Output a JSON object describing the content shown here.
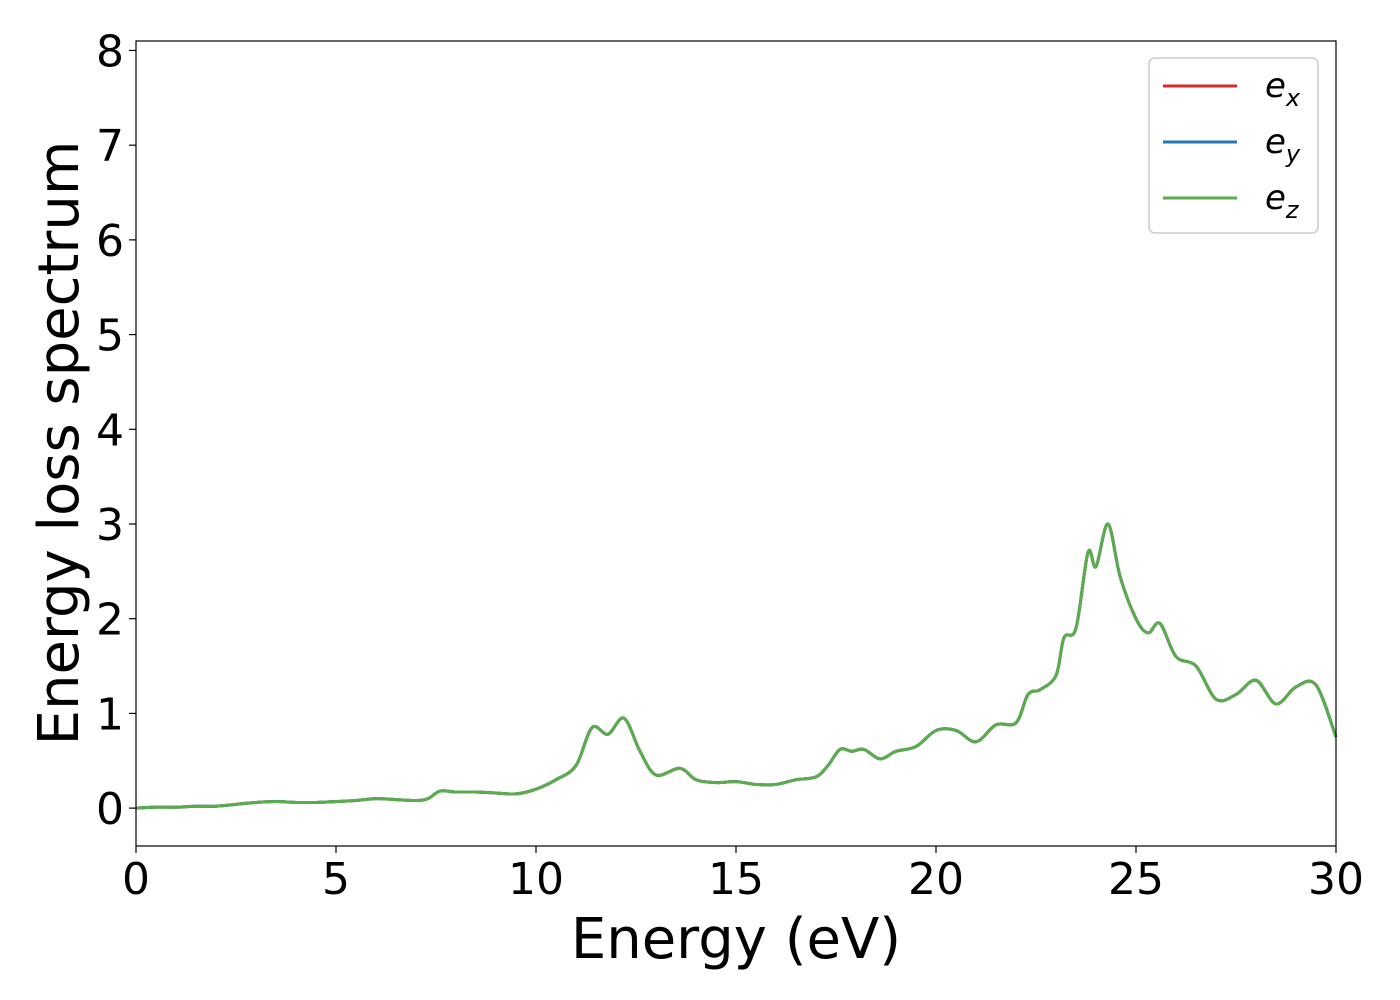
{
  "chart_data": {
    "type": "line",
    "title": "",
    "xlabel": "Energy (eV)",
    "ylabel": "Energy loss spectrum",
    "xlim": [
      0,
      30
    ],
    "ylim": [
      -0.4,
      8.1
    ],
    "xticks": [
      0,
      5,
      10,
      15,
      20,
      25,
      30
    ],
    "yticks": [
      0,
      1,
      2,
      3,
      4,
      5,
      6,
      7,
      8
    ],
    "grid": false,
    "legend_position": "top-right",
    "series": [
      {
        "name_base": "e",
        "name_sub": "x",
        "color": "#d62728",
        "x": [
          0,
          0.5,
          1,
          1.5,
          2,
          2.5,
          3,
          3.5,
          4,
          4.5,
          5,
          5.5,
          6,
          6.5,
          7,
          7.3,
          7.6,
          8,
          8.5,
          9,
          9.5,
          10,
          10.5,
          11,
          11.4,
          11.8,
          12.2,
          12.6,
          13,
          13.6,
          14,
          14.5,
          15,
          15.5,
          16,
          16.5,
          17,
          17.3,
          17.6,
          17.9,
          18.2,
          18.6,
          19,
          19.5,
          20,
          20.5,
          21,
          21.5,
          22,
          22.3,
          22.6,
          23,
          23.2,
          23.5,
          23.8,
          24,
          24.3,
          24.6,
          25,
          25.3,
          25.6,
          26,
          26.5,
          27,
          27.5,
          28,
          28.5,
          29,
          29.5,
          30
        ],
        "y": [
          0.0,
          0.01,
          0.01,
          0.02,
          0.02,
          0.04,
          0.06,
          0.07,
          0.06,
          0.06,
          0.07,
          0.08,
          0.1,
          0.09,
          0.08,
          0.1,
          0.18,
          0.17,
          0.17,
          0.16,
          0.15,
          0.2,
          0.3,
          0.45,
          0.85,
          0.78,
          0.95,
          0.6,
          0.35,
          0.42,
          0.3,
          0.27,
          0.28,
          0.25,
          0.25,
          0.3,
          0.33,
          0.45,
          0.62,
          0.6,
          0.62,
          0.52,
          0.6,
          0.65,
          0.82,
          0.82,
          0.7,
          0.88,
          0.9,
          1.2,
          1.25,
          1.4,
          1.8,
          1.9,
          2.7,
          2.55,
          3.0,
          2.45,
          2.0,
          1.85,
          1.95,
          1.6,
          1.5,
          1.15,
          1.2,
          1.35,
          1.1,
          1.28,
          1.3,
          0.75
        ]
      },
      {
        "name_base": "e",
        "name_sub": "y",
        "color": "#1f77b4",
        "x": [
          0,
          0.5,
          1,
          1.5,
          2,
          2.5,
          3,
          3.5,
          4,
          4.5,
          5,
          5.5,
          6,
          6.5,
          7,
          7.3,
          7.6,
          8,
          8.5,
          9,
          9.5,
          10,
          10.5,
          11,
          11.4,
          11.8,
          12.2,
          12.6,
          13,
          13.6,
          14,
          14.5,
          15,
          15.5,
          16,
          16.5,
          17,
          17.3,
          17.6,
          17.9,
          18.2,
          18.6,
          19,
          19.5,
          20,
          20.5,
          21,
          21.5,
          22,
          22.3,
          22.6,
          23,
          23.2,
          23.5,
          23.8,
          24,
          24.3,
          24.6,
          25,
          25.3,
          25.6,
          26,
          26.5,
          27,
          27.5,
          28,
          28.5,
          29,
          29.5,
          30
        ],
        "y": [
          0.0,
          0.01,
          0.01,
          0.02,
          0.02,
          0.04,
          0.06,
          0.07,
          0.06,
          0.06,
          0.07,
          0.08,
          0.1,
          0.09,
          0.08,
          0.1,
          0.18,
          0.17,
          0.17,
          0.16,
          0.15,
          0.2,
          0.3,
          0.45,
          0.85,
          0.78,
          0.95,
          0.6,
          0.35,
          0.42,
          0.3,
          0.27,
          0.28,
          0.25,
          0.25,
          0.3,
          0.33,
          0.45,
          0.62,
          0.6,
          0.62,
          0.52,
          0.6,
          0.65,
          0.82,
          0.82,
          0.7,
          0.88,
          0.9,
          1.2,
          1.25,
          1.4,
          1.8,
          1.9,
          2.7,
          2.55,
          3.0,
          2.45,
          2.0,
          1.85,
          1.95,
          1.6,
          1.5,
          1.15,
          1.2,
          1.35,
          1.1,
          1.28,
          1.3,
          0.75
        ]
      },
      {
        "name_base": "e",
        "name_sub": "z",
        "color": "#5aac4c",
        "x": [
          0,
          0.5,
          1,
          1.5,
          2,
          2.5,
          3,
          3.5,
          4,
          4.5,
          5,
          5.5,
          6,
          6.5,
          7,
          7.3,
          7.6,
          8,
          8.5,
          9,
          9.5,
          10,
          10.5,
          11,
          11.4,
          11.8,
          12.2,
          12.6,
          13,
          13.6,
          14,
          14.5,
          15,
          15.5,
          16,
          16.5,
          17,
          17.3,
          17.6,
          17.9,
          18.2,
          18.6,
          19,
          19.5,
          20,
          20.5,
          21,
          21.5,
          22,
          22.3,
          22.6,
          23,
          23.2,
          23.5,
          23.8,
          24,
          24.3,
          24.6,
          25,
          25.3,
          25.6,
          26,
          26.5,
          27,
          27.5,
          28,
          28.5,
          29,
          29.5,
          30
        ],
        "y": [
          0.0,
          0.01,
          0.01,
          0.02,
          0.02,
          0.04,
          0.06,
          0.07,
          0.06,
          0.06,
          0.07,
          0.08,
          0.1,
          0.09,
          0.08,
          0.1,
          0.18,
          0.17,
          0.17,
          0.16,
          0.15,
          0.2,
          0.3,
          0.45,
          0.85,
          0.78,
          0.95,
          0.6,
          0.35,
          0.42,
          0.3,
          0.27,
          0.28,
          0.25,
          0.25,
          0.3,
          0.33,
          0.45,
          0.62,
          0.6,
          0.62,
          0.52,
          0.6,
          0.65,
          0.82,
          0.82,
          0.7,
          0.88,
          0.9,
          1.2,
          1.25,
          1.4,
          1.8,
          1.9,
          2.7,
          2.55,
          3.0,
          2.45,
          2.0,
          1.85,
          1.95,
          1.6,
          1.5,
          1.15,
          1.2,
          1.35,
          1.1,
          1.28,
          1.3,
          0.75
        ]
      }
    ]
  }
}
